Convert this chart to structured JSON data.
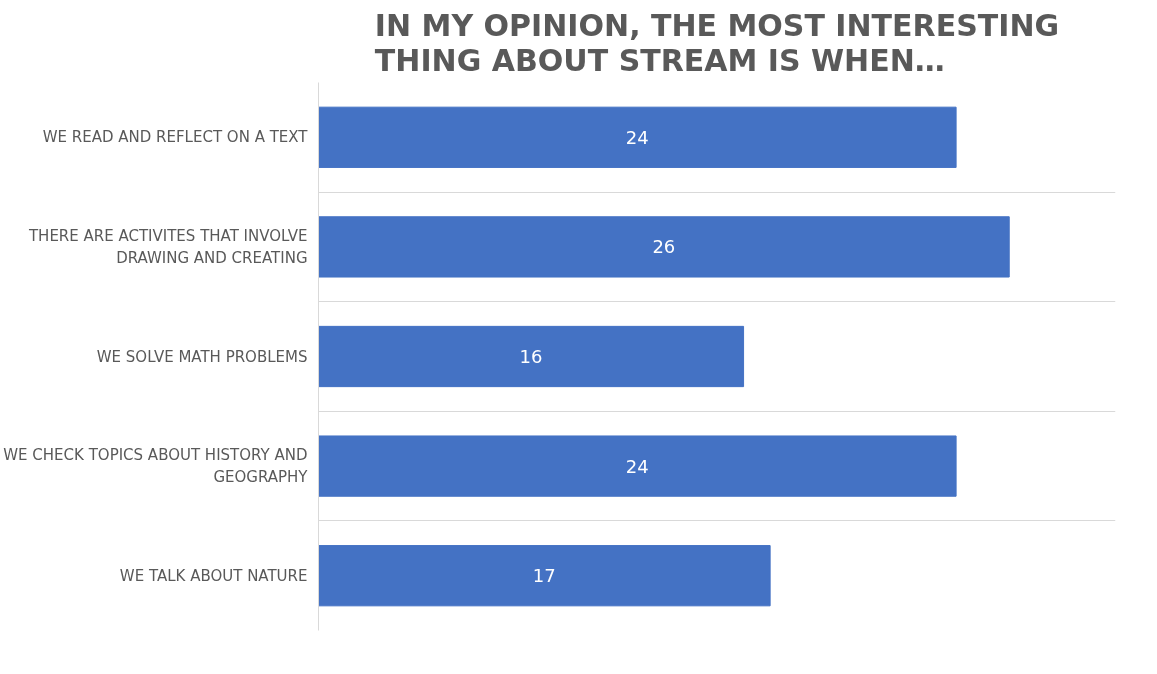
{
  "chart_data": {
    "type": "bar",
    "orientation": "horizontal",
    "title": "IN MY OPINION, THE MOST INTERESTING THING ABOUT STREAM IS WHEN…",
    "categories": [
      "WE READ AND REFLECT ON A TEXT",
      "THERE ARE ACTIVITES THAT INVOLVE DRAWING AND CREATING",
      "WE SOLVE MATH PROBLEMS",
      "WE CHECK TOPICS ABOUT HISTORY AND GEOGRAPHY",
      "WE TALK ABOUT NATURE"
    ],
    "values": [
      24,
      26,
      16,
      24,
      17
    ],
    "color": "#4472c4",
    "xlim": [
      0,
      30
    ],
    "data_labels": true,
    "grid": "y"
  }
}
